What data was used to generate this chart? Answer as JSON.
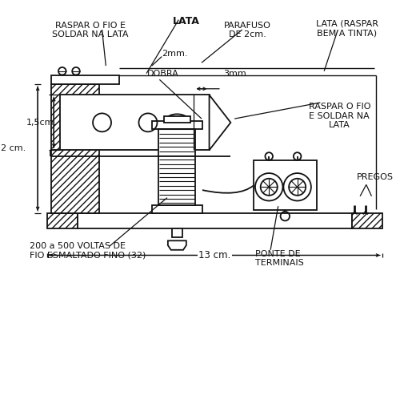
{
  "bg_color": "#ffffff",
  "line_color": "#111111",
  "labels": {
    "raspar_fio_soldar": "RASPAR O FIO E\nSOLDAR NA LATA",
    "lata": "LATA",
    "parafuso": "PARAFUSO\nDE 2cm.",
    "lata_raspar": "LATA (RASPAR\nBEM A TINTA)",
    "dois_cm": "2 cm.",
    "dois_mm": "2mm.",
    "treze_cm": "13 cm.",
    "voltas": "200 a 500 VOLTAS DE\nFIO ESMALTADO FINO (32)",
    "ponte": "PONTE DE\nTERMINAIS",
    "pregos": "PREGOS",
    "dobra": "DOBRA",
    "tres_mm": "3mm.",
    "um_cinco_cm": "1,5cm.",
    "raspar_fio2": "RASPAR O FIO\nE SOLDAR NA\nLATA"
  }
}
